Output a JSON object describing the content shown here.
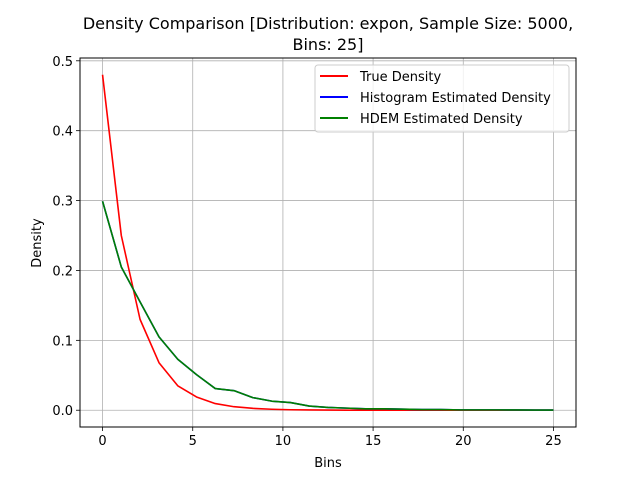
{
  "chart_data": {
    "type": "line",
    "title_line1": "Density Comparison [Distribution: expon, Sample Size: 5000,",
    "title_line2": "Bins: 25]",
    "xlabel": "Bins",
    "ylabel": "Density",
    "xlim": [
      -1.25,
      26.25
    ],
    "ylim": [
      -0.024,
      0.504
    ],
    "xticks": [
      0,
      5,
      10,
      15,
      20,
      25
    ],
    "yticks": [
      0.0,
      0.1,
      0.2,
      0.3,
      0.4,
      0.5
    ],
    "xtick_labels": [
      "0",
      "5",
      "10",
      "15",
      "20",
      "25"
    ],
    "ytick_labels": [
      "0.0",
      "0.1",
      "0.2",
      "0.3",
      "0.4",
      "0.5"
    ],
    "grid": true,
    "legend_position": "top-right",
    "series": [
      {
        "name": "True Density",
        "color": "#ff0000",
        "x": [
          0,
          1.04,
          2.08,
          3.13,
          4.17,
          5.21,
          6.25,
          7.29,
          8.33,
          9.38,
          10.42,
          11.46,
          12.5,
          13.54,
          14.58,
          15.63,
          16.67,
          17.71,
          18.75,
          19.79,
          20.83,
          21.88,
          22.92,
          23.96,
          25
        ],
        "y": [
          0.48,
          0.25,
          0.13,
          0.068,
          0.035,
          0.019,
          0.0095,
          0.005,
          0.0027,
          0.0014,
          0.0007,
          0.0004,
          0.0002,
          0.0001,
          0.0001,
          0.0,
          0.0,
          0.0,
          0.0,
          0.0,
          0.0,
          0.0,
          0.0,
          0.0,
          0.0
        ]
      },
      {
        "name": "Histogram Estimated Density",
        "color": "#0000ff",
        "x": [
          0,
          1.04,
          2.08,
          3.13,
          4.17,
          5.21,
          6.25,
          7.29,
          8.33,
          9.38,
          10.42,
          11.46,
          12.5,
          13.54,
          14.58,
          15.63,
          16.67,
          17.71,
          18.75,
          19.79,
          20.83,
          21.88,
          22.92,
          23.96,
          25
        ],
        "y": [
          0.299,
          0.205,
          0.155,
          0.105,
          0.073,
          0.051,
          0.031,
          0.028,
          0.018,
          0.013,
          0.011,
          0.006,
          0.004,
          0.003,
          0.002,
          0.002,
          0.0015,
          0.001,
          0.001,
          0.0005,
          0.0005,
          0.0005,
          0.0004,
          0.0003,
          0.0003
        ]
      },
      {
        "name": "HDEM Estimated Density",
        "color": "#008000",
        "x": [
          0,
          1.04,
          2.08,
          3.13,
          4.17,
          5.21,
          6.25,
          7.29,
          8.33,
          9.38,
          10.42,
          11.46,
          12.5,
          13.54,
          14.58,
          15.63,
          16.67,
          17.71,
          18.75,
          19.79,
          20.83,
          21.88,
          22.92,
          23.96,
          25
        ],
        "y": [
          0.299,
          0.205,
          0.155,
          0.105,
          0.073,
          0.051,
          0.031,
          0.028,
          0.018,
          0.013,
          0.011,
          0.006,
          0.004,
          0.003,
          0.002,
          0.002,
          0.0015,
          0.001,
          0.001,
          0.0005,
          0.0005,
          0.0005,
          0.0004,
          0.0003,
          0.0003
        ]
      }
    ]
  }
}
